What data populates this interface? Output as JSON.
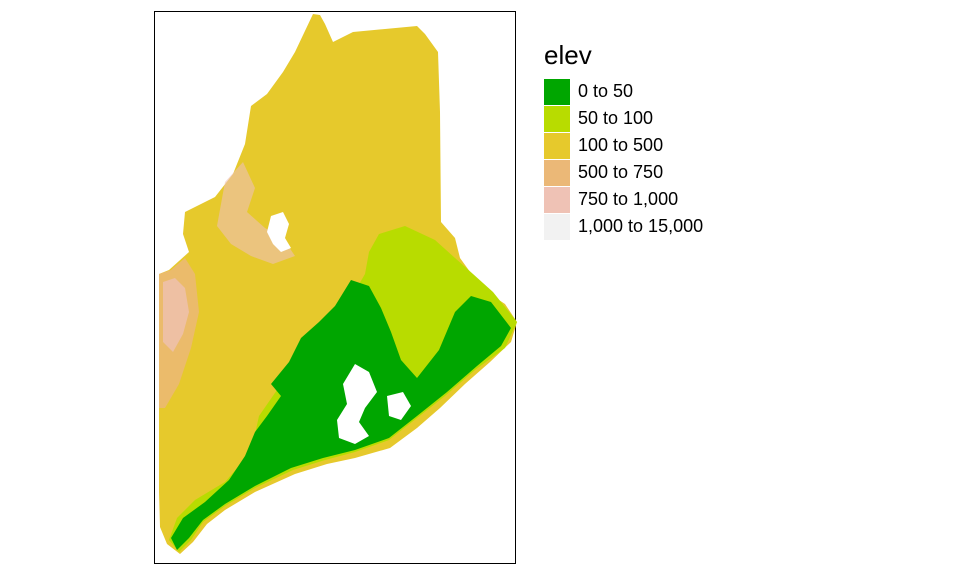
{
  "legend": {
    "title": "elev",
    "items": [
      {
        "label": "0 to 50",
        "color": "#00a600"
      },
      {
        "label": "50 to 100",
        "color": "#b8dc00"
      },
      {
        "label": "100 to 500",
        "color": "#e6c92c"
      },
      {
        "label": "500 to 750",
        "color": "#ebb877"
      },
      {
        "label": "750 to 1,000",
        "color": "#efc2b5"
      },
      {
        "label": "1,000 to 15,000",
        "color": "#f2f2f2"
      }
    ]
  }
}
